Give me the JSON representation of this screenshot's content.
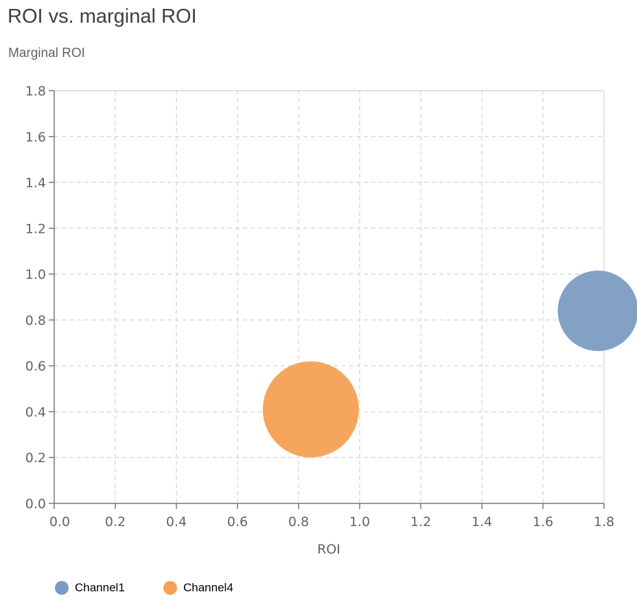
{
  "chart_data": {
    "type": "scatter",
    "title": "ROI vs. marginal ROI",
    "xlabel": "ROI",
    "ylabel": "Marginal ROI",
    "xlim": [
      0,
      1.8
    ],
    "ylim": [
      0,
      1.8
    ],
    "xticks": [
      "0.0",
      "0.2",
      "0.4",
      "0.6",
      "0.8",
      "1.0",
      "1.2",
      "1.4",
      "1.6",
      "1.8"
    ],
    "yticks": [
      "0.0",
      "0.2",
      "0.4",
      "0.6",
      "0.8",
      "1.0",
      "1.2",
      "1.4",
      "1.6",
      "1.8"
    ],
    "grid": true,
    "legend_position": "bottom-left",
    "series": [
      {
        "name": "Channel1",
        "color": "#7b9cc2",
        "x": 1.78,
        "y": 0.84,
        "relative_size": 0.7
      },
      {
        "name": "Channel4",
        "color": "#f6a153",
        "x": 0.84,
        "y": 0.41,
        "relative_size": 1.0
      }
    ]
  }
}
